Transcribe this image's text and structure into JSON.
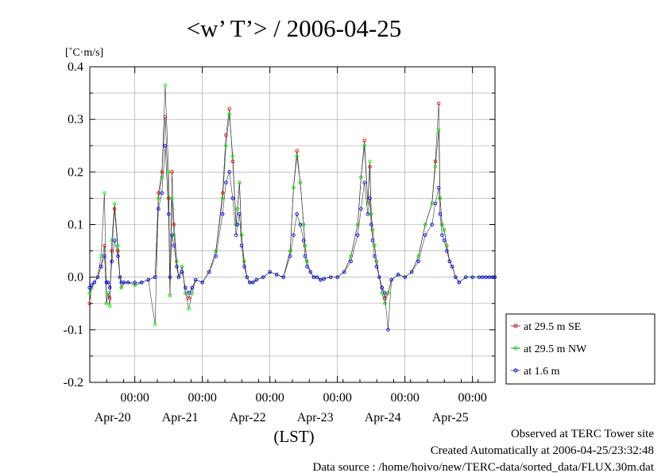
{
  "chart_data": {
    "type": "line",
    "title": "<w’ T’> / 2006-04-25",
    "ylabel": "[˚C·m/s]",
    "xlabel": "(LST)",
    "ylim": [
      -0.2,
      0.4
    ],
    "yticks": [
      "0.4",
      "0.3",
      "0.2",
      "0.1",
      "0.0",
      "-0.1",
      "-0.2"
    ],
    "xlim_days": [
      19.3333,
      25.3333
    ],
    "x_unit": "day of April 2006",
    "time_ticks": [
      "00:00",
      "00:00",
      "00:00",
      "00:00",
      "00:00",
      "00:00"
    ],
    "date_ticks": [
      "Apr-20",
      "Apr-21",
      "Apr-22",
      "Apr-23",
      "Apr-24",
      "Apr-25"
    ],
    "grid": true,
    "legend_position": "right",
    "series": [
      {
        "name": "at 29.5 m SE",
        "color": "#ff0000",
        "x": [
          19.33,
          19.36,
          19.4,
          19.45,
          19.5,
          19.55,
          19.58,
          19.6,
          19.63,
          19.66,
          19.7,
          19.75,
          19.78,
          19.8,
          19.84,
          19.9,
          20.0,
          20.1,
          20.2,
          20.3,
          20.35,
          20.4,
          20.45,
          20.5,
          20.52,
          20.55,
          20.58,
          20.62,
          20.65,
          20.7,
          20.75,
          20.8,
          20.85,
          20.9,
          21.0,
          21.1,
          21.2,
          21.3,
          21.35,
          21.4,
          21.45,
          21.5,
          21.52,
          21.55,
          21.58,
          21.62,
          21.66,
          21.7,
          21.75,
          21.8,
          21.9,
          22.0,
          22.1,
          22.2,
          22.3,
          22.35,
          22.4,
          22.45,
          22.5,
          22.52,
          22.55,
          22.6,
          22.65,
          22.7,
          22.75,
          22.8,
          22.9,
          23.0,
          23.1,
          23.2,
          23.3,
          23.35,
          23.4,
          23.45,
          23.48,
          23.5,
          23.52,
          23.55,
          23.58,
          23.62,
          23.66,
          23.7,
          23.75,
          23.8,
          23.9,
          24.0,
          24.1,
          24.2,
          24.3,
          24.4,
          24.45,
          24.5,
          24.52,
          24.55,
          24.58,
          24.62,
          24.66,
          24.7,
          24.75,
          24.8,
          24.9,
          25.0,
          25.1,
          25.15,
          25.2,
          25.25,
          25.3,
          25.33
        ],
        "y": [
          -0.05,
          -0.02,
          -0.01,
          0.0,
          0.02,
          0.06,
          -0.05,
          -0.03,
          -0.04,
          0.05,
          0.13,
          0.05,
          0.0,
          -0.02,
          -0.01,
          -0.01,
          -0.015,
          -0.01,
          -0.005,
          0.0,
          0.16,
          0.2,
          0.305,
          0.15,
          -0.035,
          0.2,
          0.1,
          0.03,
          0.0,
          0.02,
          -0.03,
          -0.04,
          -0.02,
          -0.005,
          -0.01,
          0.01,
          0.05,
          0.16,
          0.27,
          0.32,
          0.22,
          0.1,
          0.13,
          0.18,
          0.08,
          0.03,
          0.0,
          -0.01,
          -0.01,
          -0.005,
          0.0,
          0.01,
          0.005,
          0.0,
          0.05,
          0.17,
          0.24,
          0.18,
          0.1,
          0.06,
          0.03,
          0.01,
          0.0,
          0.0,
          -0.005,
          -0.003,
          0.0,
          0.0,
          0.01,
          0.04,
          0.1,
          0.19,
          0.26,
          0.14,
          0.21,
          0.12,
          0.09,
          0.06,
          0.03,
          0.0,
          -0.02,
          -0.04,
          -0.03,
          -0.005,
          0.005,
          0.0,
          0.01,
          0.04,
          0.1,
          0.14,
          0.22,
          0.33,
          0.15,
          0.1,
          0.09,
          0.06,
          0.03,
          0.02,
          0.0,
          -0.01,
          0.0,
          0.0,
          0.0,
          0.0,
          0.0,
          0.0,
          0.0,
          0.0
        ]
      },
      {
        "name": "at 29.5 m NW",
        "color": "#00ff00",
        "x": [
          19.33,
          19.36,
          19.4,
          19.45,
          19.5,
          19.55,
          19.58,
          19.6,
          19.63,
          19.66,
          19.7,
          19.75,
          19.78,
          19.8,
          19.84,
          19.9,
          20.0,
          20.1,
          20.2,
          20.3,
          20.35,
          20.4,
          20.45,
          20.5,
          20.52,
          20.55,
          20.58,
          20.62,
          20.65,
          20.7,
          20.75,
          20.8,
          20.85,
          20.9,
          21.0,
          21.1,
          21.2,
          21.3,
          21.35,
          21.4,
          21.45,
          21.5,
          21.52,
          21.55,
          21.58,
          21.62,
          21.66,
          21.7,
          21.75,
          21.8,
          21.9,
          22.0,
          22.1,
          22.2,
          22.3,
          22.35,
          22.4,
          22.45,
          22.5,
          22.52,
          22.55,
          22.6,
          22.65,
          22.7,
          22.75,
          22.8,
          22.9,
          23.0,
          23.1,
          23.2,
          23.3,
          23.35,
          23.4,
          23.45,
          23.48,
          23.5,
          23.52,
          23.55,
          23.58,
          23.62,
          23.66,
          23.7,
          23.75,
          23.8,
          23.9,
          24.0,
          24.1,
          24.2,
          24.3,
          24.4,
          24.45,
          24.5,
          24.52,
          24.55,
          24.58,
          24.62,
          24.66,
          24.7,
          24.75,
          24.8,
          24.9,
          25.0,
          25.1,
          25.15,
          25.2,
          25.25,
          25.3,
          25.33
        ],
        "y": [
          -0.03,
          -0.02,
          -0.01,
          0.0,
          0.04,
          0.16,
          -0.05,
          -0.03,
          -0.055,
          0.07,
          0.14,
          0.06,
          0.0,
          -0.02,
          -0.01,
          -0.01,
          -0.015,
          -0.01,
          -0.005,
          -0.09,
          0.15,
          0.19,
          0.365,
          0.2,
          -0.035,
          0.15,
          0.08,
          0.03,
          0.0,
          0.02,
          -0.03,
          -0.06,
          -0.03,
          -0.005,
          -0.01,
          0.01,
          0.05,
          0.15,
          0.25,
          0.31,
          0.23,
          0.1,
          0.13,
          0.18,
          0.08,
          0.03,
          0.0,
          -0.01,
          -0.01,
          -0.005,
          0.0,
          0.01,
          0.005,
          0.0,
          0.05,
          0.17,
          0.23,
          0.18,
          0.1,
          0.06,
          0.03,
          0.01,
          0.0,
          0.0,
          -0.005,
          -0.003,
          0.0,
          0.0,
          0.01,
          0.04,
          0.1,
          0.19,
          0.25,
          0.14,
          0.22,
          0.12,
          0.09,
          0.06,
          0.03,
          0.0,
          -0.03,
          -0.05,
          -0.03,
          -0.005,
          0.005,
          0.0,
          0.01,
          0.04,
          0.1,
          0.14,
          0.21,
          0.28,
          0.15,
          0.1,
          0.09,
          0.06,
          0.03,
          0.02,
          0.0,
          -0.01,
          0.0,
          0.0,
          0.0,
          0.0,
          0.0,
          0.0,
          0.0,
          0.0
        ]
      },
      {
        "name": "at 1.6 m",
        "color": "#0000ff",
        "x": [
          19.33,
          19.36,
          19.4,
          19.45,
          19.5,
          19.55,
          19.58,
          19.6,
          19.63,
          19.66,
          19.7,
          19.75,
          19.78,
          19.8,
          19.84,
          19.9,
          20.0,
          20.1,
          20.2,
          20.3,
          20.35,
          20.4,
          20.45,
          20.5,
          20.52,
          20.55,
          20.58,
          20.62,
          20.65,
          20.7,
          20.75,
          20.8,
          20.85,
          20.9,
          21.0,
          21.1,
          21.2,
          21.3,
          21.35,
          21.4,
          21.45,
          21.5,
          21.52,
          21.55,
          21.58,
          21.62,
          21.66,
          21.7,
          21.75,
          21.8,
          21.9,
          22.0,
          22.1,
          22.2,
          22.3,
          22.35,
          22.4,
          22.45,
          22.5,
          22.52,
          22.55,
          22.6,
          22.65,
          22.7,
          22.75,
          22.8,
          22.9,
          23.0,
          23.1,
          23.2,
          23.3,
          23.35,
          23.4,
          23.45,
          23.48,
          23.5,
          23.52,
          23.55,
          23.58,
          23.62,
          23.66,
          23.7,
          23.75,
          23.8,
          23.9,
          24.0,
          24.1,
          24.2,
          24.3,
          24.4,
          24.45,
          24.5,
          24.52,
          24.55,
          24.58,
          24.62,
          24.66,
          24.7,
          24.75,
          24.8,
          24.9,
          25.0,
          25.1,
          25.15,
          25.2,
          25.25,
          25.3,
          25.33
        ],
        "y": [
          -0.02,
          -0.015,
          -0.01,
          0.0,
          0.02,
          0.04,
          -0.01,
          -0.01,
          -0.02,
          0.03,
          0.07,
          0.04,
          0.0,
          -0.01,
          -0.01,
          -0.01,
          -0.01,
          -0.01,
          -0.005,
          0.0,
          0.13,
          0.16,
          0.25,
          0.12,
          0.0,
          0.08,
          0.06,
          0.02,
          0.0,
          0.01,
          -0.02,
          -0.03,
          -0.02,
          -0.005,
          -0.01,
          0.01,
          0.04,
          0.12,
          0.18,
          0.2,
          0.15,
          0.08,
          0.1,
          0.12,
          0.06,
          0.02,
          0.0,
          -0.01,
          -0.01,
          -0.005,
          0.0,
          0.01,
          0.005,
          0.0,
          0.04,
          0.08,
          0.12,
          0.1,
          0.07,
          0.04,
          0.02,
          0.01,
          0.0,
          0.0,
          -0.005,
          -0.003,
          0.0,
          0.0,
          0.01,
          0.03,
          0.08,
          0.13,
          0.18,
          0.12,
          0.15,
          0.1,
          0.07,
          0.04,
          0.02,
          0.0,
          -0.02,
          -0.03,
          -0.1,
          -0.005,
          0.005,
          0.0,
          0.01,
          0.03,
          0.08,
          0.1,
          0.14,
          0.17,
          0.12,
          0.08,
          0.07,
          0.05,
          0.03,
          0.02,
          0.0,
          -0.01,
          0.0,
          0.0,
          0.0,
          0.0,
          0.0,
          0.0,
          0.0,
          0.0
        ]
      }
    ]
  },
  "footer": {
    "observed": "Observed at TERC Tower site",
    "created": "Created Automatically at 2006-04-25/23:32:48",
    "source": "Data source : /home/hoivo/new/TERC-data/sorted_data/FLUX.30m.dat"
  }
}
